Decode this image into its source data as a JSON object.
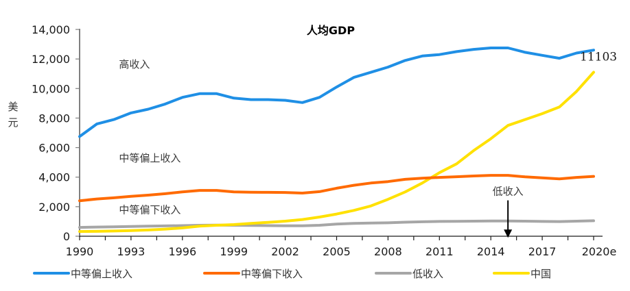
{
  "chart_data": {
    "type": "line",
    "title": "人均GDP",
    "xlabel": "",
    "ylabel": "美元",
    "ylim": [
      0,
      14000
    ],
    "yticks": [
      0,
      2000,
      4000,
      6000,
      8000,
      10000,
      12000,
      14000
    ],
    "ytick_labels": [
      "0",
      "2,000",
      "4,000",
      "6,000",
      "8,000",
      "10,000",
      "12,000",
      "14,000"
    ],
    "xlim": [
      1990,
      2020
    ],
    "xtick_labels": [
      "1990",
      "1993",
      "1996",
      "1999",
      "2002",
      "2005",
      "2008",
      "2011",
      "2014",
      "2017",
      "2020e"
    ],
    "grid": false,
    "legend_position": "bottom",
    "x": [
      1990,
      1991,
      1992,
      1993,
      1994,
      1995,
      1996,
      1997,
      1998,
      1999,
      2000,
      2001,
      2002,
      2003,
      2004,
      2005,
      2006,
      2007,
      2008,
      2009,
      2010,
      2011,
      2012,
      2013,
      2014,
      2015,
      2016,
      2017,
      2018,
      2019,
      2020
    ],
    "series": [
      {
        "name": "中等偏上收入",
        "color": "#1f8fe5",
        "values": [
          6750,
          7600,
          7900,
          8350,
          8600,
          8950,
          9400,
          9650,
          9650,
          9350,
          9250,
          9250,
          9200,
          9050,
          9400,
          10100,
          10750,
          11100,
          11450,
          11900,
          12200,
          12300,
          12500,
          12650,
          12750,
          12750,
          12450,
          12250,
          12050,
          12400,
          12600
        ]
      },
      {
        "name": "中等偏下收入",
        "color": "#ff6a00",
        "values": [
          2400,
          2520,
          2600,
          2700,
          2780,
          2880,
          3000,
          3100,
          3100,
          3000,
          2980,
          2970,
          2960,
          2920,
          3020,
          3250,
          3450,
          3600,
          3700,
          3850,
          3930,
          3980,
          4030,
          4080,
          4120,
          4120,
          4020,
          3950,
          3880,
          3980,
          4050
        ]
      },
      {
        "name": "低收入",
        "color": "#a6a6a6",
        "values": [
          600,
          620,
          640,
          660,
          680,
          700,
          720,
          740,
          750,
          740,
          730,
          720,
          710,
          710,
          740,
          820,
          870,
          890,
          910,
          950,
          980,
          1000,
          1010,
          1020,
          1030,
          1030,
          1020,
          1000,
          990,
          1020,
          1050
        ]
      },
      {
        "name": "中国",
        "color": "#ffe100",
        "values": [
          320,
          330,
          350,
          380,
          420,
          480,
          560,
          680,
          740,
          790,
          870,
          940,
          1020,
          1130,
          1300,
          1500,
          1750,
          2050,
          2500,
          3000,
          3600,
          4300,
          4900,
          5800,
          6600,
          7500,
          7900,
          8300,
          8750,
          9800,
          11103
        ]
      }
    ],
    "annotations": [
      {
        "text": "高收入",
        "x": 1993.5,
        "y": 11400
      },
      {
        "text": "中等偏上收入",
        "x": 1993.5,
        "y": 5050
      },
      {
        "text": "中等偏下收入",
        "x": 1993.5,
        "y": 1550
      },
      {
        "text": "低收入",
        "x": 2015,
        "y": 2800,
        "arrow_to_y": 450
      },
      {
        "text": "11103",
        "x": 2019.8,
        "y": 11900
      }
    ]
  }
}
